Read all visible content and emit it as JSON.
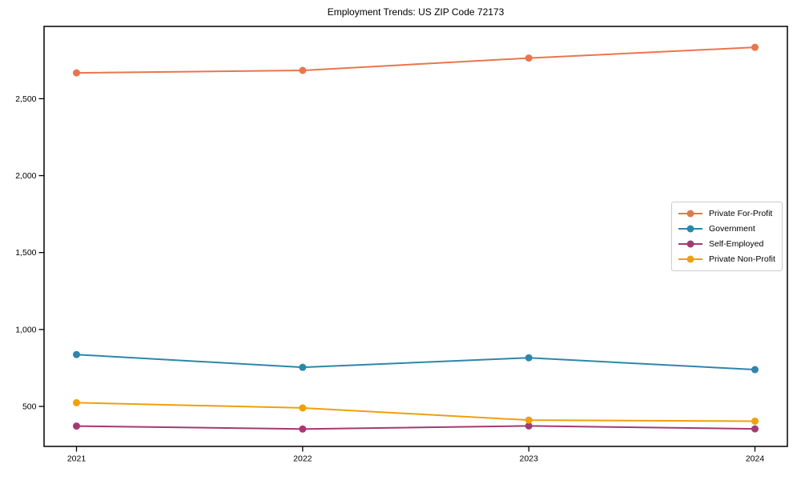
{
  "chart_data": {
    "type": "line",
    "title": "Employment Trends: US ZIP Code 72173",
    "xlabel": "",
    "ylabel": "",
    "x": [
      "2021",
      "2022",
      "2023",
      "2024"
    ],
    "series": [
      {
        "name": "Private For-Profit",
        "color": "#E8764D",
        "values": [
          2668,
          2684,
          2764,
          2834
        ]
      },
      {
        "name": "Government",
        "color": "#2E86AB",
        "values": [
          837,
          754,
          816,
          739
        ]
      },
      {
        "name": "Self-Employed",
        "color": "#A23B72",
        "values": [
          372,
          353,
          373,
          354
        ]
      },
      {
        "name": "Private Non-Profit",
        "color": "#EFA00B",
        "values": [
          524,
          490,
          411,
          404
        ]
      }
    ],
    "yticks": [
      500,
      1000,
      1500,
      2000,
      2500
    ],
    "ytick_labels": [
      "500",
      "1,000",
      "1,500",
      "2,000",
      "2,500"
    ],
    "ylim": [
      240,
      2970
    ],
    "grid": false,
    "legend_position": "center-right",
    "marker": "circle",
    "frame_color": "#000000"
  }
}
